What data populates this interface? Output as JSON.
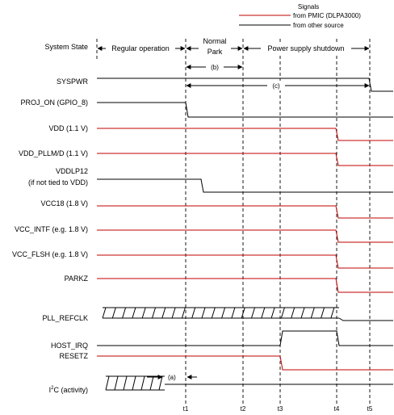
{
  "legend": {
    "title": "Signals",
    "pmic": "from PMIC (DLPA3000)",
    "other": "from other source"
  },
  "colors": {
    "pmic": "#c00000",
    "other": "#000000"
  },
  "states": {
    "label": "System State",
    "regular": "Regular operation",
    "normal_park_1": "Normal",
    "normal_park_2": "Park",
    "shutdown": "Power supply shutdown"
  },
  "intervals": {
    "a": "(a)",
    "b": "(b)",
    "c": "(c)"
  },
  "signals": {
    "syspwr": "SYSPWR",
    "proj_on": "PROJ_ON (GPIO_8)",
    "vdd": "VDD (1.1 V)",
    "vdd_pllm": "VDD_PLLM/D (1.1 V)",
    "vddlp12": "VDDLP12",
    "vddlp12_note": "(if not tied to VDD)",
    "vcc18": "VCC18 (1.8 V)",
    "vcc_intf": "VCC_INTF (e.g. 1.8 V)",
    "vcc_flsh": "VCC_FLSH (e.g. 1.8 V)",
    "parkz": "PARKZ",
    "pll_refclk": "PLL_REFCLK",
    "host_irq": "HOST_IRQ",
    "resetz": "RESETZ",
    "i2c_prefix": "I",
    "i2c_sup": "2",
    "i2c_suffix": "C (activity)"
  },
  "time_markers": [
    "t1",
    "t2",
    "t3",
    "t4",
    "t5"
  ]
}
